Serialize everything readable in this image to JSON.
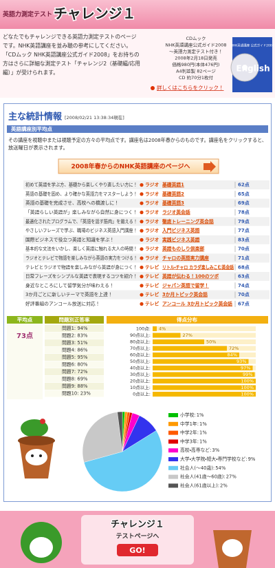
{
  "header": {
    "kicker": "英語力測定テスト",
    "title": "チャレンジ１"
  },
  "intro": {
    "lines": [
      "どなたでもチャレンジできる英語力測定テストのページ",
      "です。NHK英語講座を並み聴の参考にしてください。",
      "「CDムック NHK英語講座公式ガイド2008」をお持ちの",
      "方はさらに詳細な測定テスト「チャレンジ2（基礎編/応用",
      "編）」が受けられます。"
    ],
    "product": {
      "lines": [
        "CDムック",
        "NHK英語講座公式ガイド2008",
        "〜英語力測定テスト付き！",
        "2008年2月18日発売",
        "価格980円(本体476円)",
        "A4判並製 82ページ",
        "CD 約70分1枚付"
      ],
      "cover_brand": "NHK英語講座 公式ガイド2008",
      "cover_word": "English",
      "link": "詳しくはこちらをクリック！"
    }
  },
  "stats": {
    "title": "主な統計情報",
    "timestamp": "[2008/02/21 13:38:34現在]",
    "section": "英語講座別平均点",
    "description": [
      "その講座を視聴中または視聴予定の方々の平均点です。講座名は2008年春からのものです。講座名をクリックすると、",
      "放送曜日が表示されます。"
    ],
    "button": "2008年春からのNHK英語講座のページへ",
    "table": {
      "rows": [
        [
          "初めて英語を学ぶ方、基礎から楽しくやり直したい方に！",
          "ラジオ",
          "基礎英語1",
          "62点"
        ],
        [
          "英語の基礎を固め、より確かな英語力をマスターしよう！",
          "ラジオ",
          "基礎英語2",
          "65点"
        ],
        [
          "英語の基礎を完成させ、高校への橋渡しに！",
          "ラジオ",
          "基礎英語3",
          "69点"
        ],
        [
          "「英語らしい英語が」楽しみながら自然に身につく！",
          "ラジオ",
          "ラジオ英会話",
          "78点"
        ],
        [
          "最適化されたプログラムで、「英語を話す筋肉」を鍛える！",
          "ラジオ",
          "徹底トレーニング英会話",
          "79点"
        ],
        [
          "やさしいフレーズで学ぶ、職場のビジネス英語入門講座！",
          "ラジオ",
          "入門ビジネス英語",
          "77点"
        ],
        [
          "国際ビジネスで役立つ英語と知識を学ぶ！",
          "ラジオ",
          "実践ビジネス英語",
          "83点"
        ],
        [
          "基本的な文法をいかし、楽しく英語に触れる大人の時間！",
          "ラジオ",
          "英語ものしり倶楽部",
          "70点"
        ],
        [
          "ラジオとテレビで物語を楽しみながら英語の実力をつける！",
          "ラジオ",
          "チャロの英語実力講座",
          "71点"
        ],
        [
          "テレビとラジオで物語を楽しみながら英語が身につく！",
          "テレビ",
          "リトル・チャロ カラダ楽しみこむ英会話",
          "68点"
        ],
        [
          "日常フレーズをシンプルな英語で表現するコツを紹介！",
          "テレビ",
          "英語が伝わる！100のツボ",
          "63点"
        ],
        [
          "身近なところにして留学気分が味わえる！",
          "テレビ",
          "ジャパン英語で留学！",
          "74点"
        ],
        [
          "3か月ごとに新しいテーマで英語を上達！",
          "テレビ",
          "3か月トピック英会話",
          "70点"
        ],
        [
          "好評番組のアンコール放送に対応！",
          "テレビ",
          "アンコール 3か月トピック英会話",
          "67点"
        ]
      ]
    }
  },
  "average": {
    "title": "平均点",
    "value": "73点"
  },
  "questions": {
    "title": "問題別正答率",
    "rows": [
      "問題1: 94%",
      "問題2: 83%",
      "問題3: 51%",
      "問題4: 86%",
      "問題5: 95%",
      "問題6: 80%",
      "問題7: 72%",
      "問題8: 69%",
      "問題9: 88%",
      "問題10: 23%"
    ]
  },
  "chart_data": [
    {
      "type": "hbar",
      "title": "得点分布",
      "categories": [
        "100点:",
        "90点以上:",
        "80点以上:",
        "70点以上:",
        "60点以上:",
        "50点以上:",
        "40点以上:",
        "30点以上:",
        "20点以上:",
        "10点以上:",
        "0点以上:"
      ],
      "values": [
        4,
        27,
        50,
        72,
        84,
        93,
        97,
        99,
        100,
        100,
        100
      ],
      "value_labels": [
        "4%",
        "27%",
        "50%",
        "72%",
        "84%",
        "93%",
        "97%",
        "99%",
        "100%",
        "100%",
        "100%"
      ],
      "xlim": [
        0,
        100
      ],
      "color": "#f5b800"
    },
    {
      "type": "pie",
      "categories": [
        "小学校:",
        "中学1年:",
        "中学2年:",
        "中学3年:",
        "高校・高専など:",
        "大学・大学院・短大・専門学校など:",
        "社会人(〜40歳):",
        "社会人(41歳〜60歳):",
        "社会人(61歳以上):"
      ],
      "values": [
        1,
        1,
        1,
        1,
        3,
        9,
        54,
        27,
        2
      ],
      "value_labels": [
        "1%",
        "1%",
        "1%",
        "1%",
        "3%",
        "9%",
        "54%",
        "27%",
        "2%"
      ],
      "colors": [
        "#00c000",
        "#ff9900",
        "#ff5a00",
        "#e00000",
        "#ff00cc",
        "#3333ee",
        "#66ccf5",
        "#c8c8c8",
        "#555555"
      ]
    }
  ],
  "footer": {
    "title": "チャレンジ１",
    "subtitle": "テストページへ",
    "button": "GO!"
  }
}
